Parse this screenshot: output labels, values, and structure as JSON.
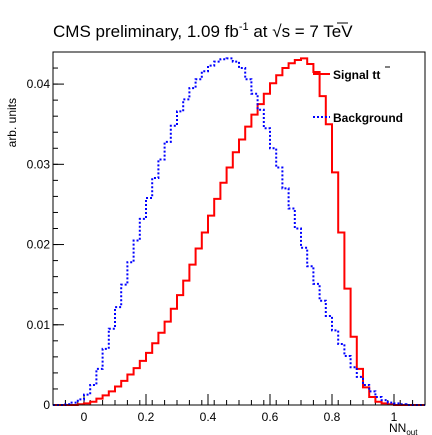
{
  "chart_data": {
    "type": "line",
    "title_main": "CMS preliminary, 1.09 fb",
    "title_sup": "-1",
    "title_at": " at ",
    "title_sqrt": "√",
    "title_sqrt_s": "s",
    "title_energy": " = 7 TeV",
    "ylabel": "arb. units",
    "xlabel_main": "NN",
    "xlabel_sub": "out",
    "xlim": [
      -0.1,
      1.1
    ],
    "ylim": [
      0,
      0.044
    ],
    "x_ticks": [
      0,
      0.2,
      0.4,
      0.6,
      0.8,
      1
    ],
    "x_tick_labels": [
      "0",
      "0.2",
      "0.4",
      "0.6",
      "0.8",
      "1"
    ],
    "y_ticks": [
      0,
      0.01,
      0.02,
      0.03,
      0.04
    ],
    "y_tick_labels": [
      "0",
      "0.01",
      "0.02",
      "0.03",
      "0.04"
    ],
    "legend_position": "top-right",
    "bin_edges_start": -0.1,
    "bin_width": 0.02,
    "series": [
      {
        "name": "Signal tt̄",
        "legend_main": "Signal t",
        "legend_bar": "t",
        "color": "#ff0000",
        "style": "solid",
        "values": [
          0,
          0,
          0,
          0,
          0.0001,
          0.0002,
          0.0004,
          0.0008,
          0.0012,
          0.0017,
          0.0023,
          0.003,
          0.0038,
          0.0046,
          0.0055,
          0.0065,
          0.0077,
          0.009,
          0.0104,
          0.012,
          0.0137,
          0.0155,
          0.0175,
          0.0195,
          0.0215,
          0.0236,
          0.0257,
          0.0277,
          0.0296,
          0.0315,
          0.0331,
          0.0347,
          0.0362,
          0.0375,
          0.0388,
          0.0401,
          0.0411,
          0.042,
          0.0426,
          0.043,
          0.0432,
          0.0425,
          0.0415,
          0.0385,
          0.035,
          0.029,
          0.0215,
          0.0145,
          0.0085,
          0.0045,
          0.0022,
          0.001,
          0.0004,
          0.0002,
          0.0001,
          0,
          0,
          0,
          0,
          0
        ]
      },
      {
        "name": "Background",
        "legend_main": "Background",
        "color": "#0000ff",
        "style": "dotted",
        "values": [
          0,
          0,
          0.0001,
          0.0003,
          0.0007,
          0.0013,
          0.0025,
          0.0045,
          0.007,
          0.0095,
          0.0122,
          0.015,
          0.0178,
          0.0205,
          0.0232,
          0.0258,
          0.0283,
          0.0306,
          0.0328,
          0.0348,
          0.0366,
          0.0381,
          0.0395,
          0.0406,
          0.0416,
          0.0423,
          0.0428,
          0.0431,
          0.0432,
          0.0428,
          0.042,
          0.0406,
          0.0388,
          0.0368,
          0.0345,
          0.032,
          0.0296,
          0.027,
          0.0245,
          0.022,
          0.0196,
          0.0173,
          0.0151,
          0.013,
          0.0111,
          0.0093,
          0.0076,
          0.0061,
          0.0047,
          0.0035,
          0.0025,
          0.0017,
          0.001,
          0.0006,
          0.0003,
          0.0002,
          0.0001,
          0,
          0,
          0
        ]
      }
    ]
  }
}
